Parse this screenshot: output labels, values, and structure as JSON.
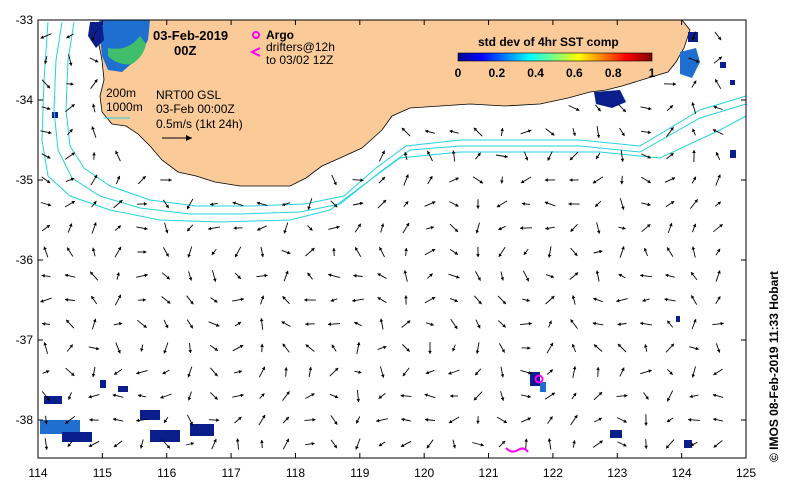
{
  "map": {
    "date_title": "03-Feb-2019",
    "time_title": "00Z",
    "argo_label": "Argo",
    "drifters_line1": "drifters@12h",
    "drifters_line2": "to 03/02 12Z",
    "contour_200": "200m",
    "contour_1000": "1000m",
    "product_line1": "NRT00 GSL",
    "product_line2": "03-Feb 00:00Z",
    "scale_text": "0.5m/s (1kt 24h)",
    "colorbar": {
      "title": "std dev of 4hr SST comp",
      "ticks": [
        "0",
        "0.2",
        "0.4",
        "0.6",
        "0.8",
        "1"
      ]
    },
    "credit": "©  IMOS 08-Feb-2019 11:33 Hobart",
    "lon_ticks": [
      "114",
      "115",
      "116",
      "117",
      "118",
      "119",
      "120",
      "121",
      "122",
      "123",
      "124",
      "125"
    ],
    "lat_ticks": [
      "-33",
      "-34",
      "-35",
      "-36",
      "-37",
      "-38"
    ],
    "colors": {
      "land": "#FACB98",
      "contour": "#22D3E0",
      "argo": "#FF00FF",
      "cloud_dark": "#0A1E8C",
      "cloud_mid": "#1E6FD0",
      "cloud_green": "#3FBF6A"
    }
  }
}
